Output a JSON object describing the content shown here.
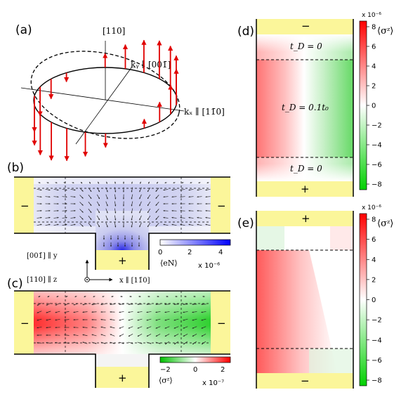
{
  "panels": {
    "a": "(a)",
    "b": "(b)",
    "c": "(c)",
    "d": "(d)",
    "e": "(e)"
  },
  "panel_a": {
    "axis_vertical": "[110]",
    "axis_ky": "kᵧ ∥ [001̄]",
    "axis_kx": "kₓ ∥ [11̄0]"
  },
  "panel_b": {
    "lead_left": "−",
    "lead_right": "−",
    "lead_bottom": "+",
    "colorbar_ticks": [
      "0",
      "2",
      "4"
    ],
    "colorbar_label": "⟨eN⟩",
    "colorbar_scale": "x 10⁻⁶",
    "colors": {
      "low": "#ffffff",
      "high": "#0000ff"
    }
  },
  "axes_inset": {
    "y_label": "[001̄] ∥ y",
    "z_label": "[110] ∥ z",
    "x_label": "x ∥ [11̄0]"
  },
  "panel_c": {
    "lead_left": "−",
    "lead_right": "−",
    "lead_bottom": "+",
    "colorbar_ticks": [
      "−2",
      "0",
      "2"
    ],
    "colorbar_label": "⟨σᶻ⟩",
    "colorbar_scale": "x 10⁻⁷",
    "colors": {
      "low": "#00cc00",
      "high": "#ff0000"
    }
  },
  "panel_d": {
    "lead_top": "−",
    "lead_bottom": "+",
    "region_top": "t_D = 0",
    "region_mid": "t_D = 0.1t₀",
    "region_bottom": "t_D = 0",
    "colorbar_scale": "x 10⁻⁶",
    "colorbar_label": "⟨σᶻ⟩",
    "colorbar_ticks": [
      "8",
      "6",
      "4",
      "2",
      "0",
      "−2",
      "−4",
      "−6",
      "−8"
    ]
  },
  "panel_e": {
    "lead_top": "+",
    "lead_bottom": "−",
    "colorbar_scale": "x 10⁻⁶",
    "colorbar_label": "⟨σᶻ⟩",
    "colorbar_ticks": [
      "8",
      "6",
      "4",
      "2",
      "0",
      "−2",
      "−4",
      "−6",
      "−8"
    ]
  },
  "lead_color": "#fbf69a",
  "arrow_color": "#e00000"
}
